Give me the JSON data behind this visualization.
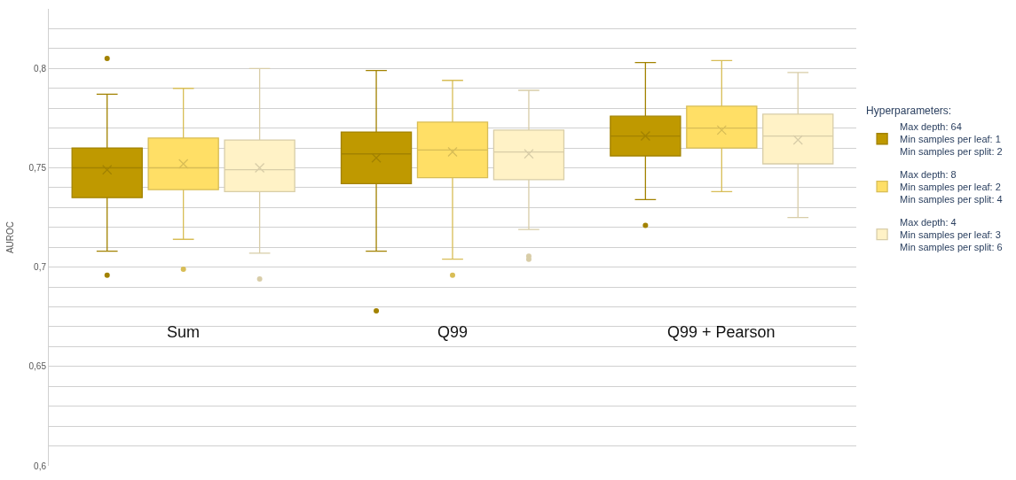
{
  "chart_data": {
    "type": "box",
    "ylabel": "AUROC",
    "legend_title": "Hyperparameters:",
    "legend": "right",
    "grid": "y",
    "tick_labels": "y",
    "categories": [
      "Sum",
      "Q99",
      "Q99 + Pearson"
    ],
    "ylim": [
      0.6,
      0.83
    ],
    "yticks": [
      {
        "value": 0.6,
        "label": "0,6"
      },
      {
        "value": 0.61,
        "label": null
      },
      {
        "value": 0.62,
        "label": null
      },
      {
        "value": 0.63,
        "label": null
      },
      {
        "value": 0.64,
        "label": null
      },
      {
        "value": 0.65,
        "label": "0,65"
      },
      {
        "value": 0.66,
        "label": null
      },
      {
        "value": 0.67,
        "label": null
      },
      {
        "value": 0.68,
        "label": null
      },
      {
        "value": 0.69,
        "label": null
      },
      {
        "value": 0.7,
        "label": "0,7"
      },
      {
        "value": 0.71,
        "label": null
      },
      {
        "value": 0.72,
        "label": null
      },
      {
        "value": 0.73,
        "label": null
      },
      {
        "value": 0.74,
        "label": null
      },
      {
        "value": 0.75,
        "label": "0,75"
      },
      {
        "value": 0.76,
        "label": null
      },
      {
        "value": 0.77,
        "label": null
      },
      {
        "value": 0.78,
        "label": null
      },
      {
        "value": 0.79,
        "label": null
      },
      {
        "value": 0.8,
        "label": "0,8"
      },
      {
        "value": 0.81,
        "label": null
      },
      {
        "value": 0.82,
        "label": null
      }
    ],
    "series": [
      {
        "name": "Max depth: 64\nMin samples per leaf: 1\nMin samples per split: 2",
        "color": "#bf9900",
        "boxes": [
          {
            "low": 0.708,
            "q1": 0.735,
            "median": 0.75,
            "q3": 0.76,
            "high": 0.787,
            "mean": 0.749,
            "outliers": [
              0.805,
              0.696
            ]
          },
          {
            "low": 0.708,
            "q1": 0.742,
            "median": 0.757,
            "q3": 0.768,
            "high": 0.799,
            "mean": 0.755,
            "outliers": [
              0.678
            ]
          },
          {
            "low": 0.734,
            "q1": 0.756,
            "median": 0.766,
            "q3": 0.776,
            "high": 0.803,
            "mean": 0.766,
            "outliers": [
              0.721
            ]
          }
        ]
      },
      {
        "name": "Max depth: 8\nMin samples per leaf: 2\nMin samples per split: 4",
        "color": "#ffdf66",
        "boxes": [
          {
            "low": 0.714,
            "q1": 0.739,
            "median": 0.75,
            "q3": 0.765,
            "high": 0.79,
            "mean": 0.752,
            "outliers": [
              0.699
            ]
          },
          {
            "low": 0.704,
            "q1": 0.745,
            "median": 0.759,
            "q3": 0.773,
            "high": 0.794,
            "mean": 0.758,
            "outliers": [
              0.696
            ]
          },
          {
            "low": 0.738,
            "q1": 0.76,
            "median": 0.77,
            "q3": 0.781,
            "high": 0.804,
            "mean": 0.769
          }
        ]
      },
      {
        "name": "Max depth: 4\nMin samples per leaf: 3\nMin samples per split: 6",
        "color": "#fff2c6",
        "boxes": [
          {
            "low": 0.707,
            "q1": 0.738,
            "median": 0.749,
            "q3": 0.764,
            "high": 0.8,
            "mean": 0.75,
            "outliers": [
              0.694
            ]
          },
          {
            "low": 0.719,
            "q1": 0.744,
            "median": 0.758,
            "q3": 0.769,
            "high": 0.789,
            "mean": 0.757,
            "outliers": [
              0.7055,
              0.704
            ]
          },
          {
            "low": 0.725,
            "q1": 0.752,
            "median": 0.766,
            "q3": 0.777,
            "high": 0.798,
            "mean": 0.764
          }
        ]
      }
    ]
  }
}
